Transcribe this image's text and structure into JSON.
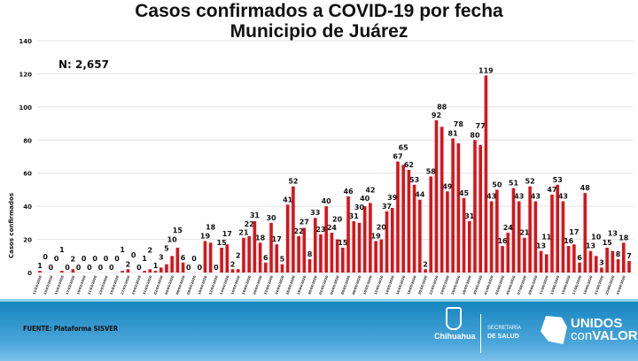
{
  "chart_data": {
    "type": "bar",
    "title": "Casos confirmados a COVID-19 por fecha",
    "subtitle": "Municipio de Juárez",
    "ylabel": "Casos confirmados",
    "xlabel": "",
    "ylim": [
      0,
      140
    ],
    "yticks": [
      0,
      20,
      40,
      60,
      80,
      100,
      120,
      140
    ],
    "grid": true,
    "bar_color": "#d7141a",
    "annotation": "N: 2,657",
    "categories": [
      "11/03/2020",
      "12/03/2020",
      "13/03/2020",
      "14/03/2020",
      "15/03/2020",
      "16/03/2020",
      "17/03/2020",
      "18/03/2020",
      "19/03/2020",
      "20/03/2020",
      "21/03/2020",
      "22/03/2020",
      "23/03/2020",
      "24/03/2020",
      "25/03/2020",
      "26/03/2020",
      "27/03/2020",
      "28/03/2020",
      "29/03/2020",
      "30/03/2020",
      "31/03/2020",
      "01/04/2020",
      "02/04/2020",
      "03/04/2020",
      "04/04/2020",
      "05/04/2020",
      "06/04/2020",
      "07/04/2020",
      "08/04/2020",
      "09/04/2020",
      "10/04/2020",
      "11/04/2020",
      "12/04/2020",
      "13/04/2020",
      "14/04/2020",
      "15/04/2020",
      "16/04/2020",
      "17/04/2020",
      "18/04/2020",
      "19/04/2020",
      "20/04/2020",
      "21/04/2020",
      "22/04/2020",
      "23/04/2020",
      "24/04/2020",
      "25/04/2020",
      "26/04/2020",
      "27/04/2020",
      "28/04/2020",
      "29/04/2020",
      "30/04/2020",
      "01/05/2020",
      "02/05/2020",
      "03/05/2020",
      "04/05/2020",
      "05/05/2020",
      "06/05/2020",
      "07/05/2020",
      "08/05/2020",
      "09/05/2020",
      "10/05/2020",
      "11/05/2020",
      "12/05/2020",
      "13/05/2020",
      "14/05/2020",
      "15/05/2020",
      "16/05/2020",
      "17/05/2020",
      "18/05/2020",
      "19/05/2020",
      "20/05/2020",
      "21/05/2020",
      "22/05/2020",
      "23/05/2020",
      "24/05/2020",
      "25/05/2020",
      "26/05/2020",
      "27/05/2020",
      "28/05/2020",
      "29/05/2020",
      "30/05/2020",
      "31/05/2020",
      "01/06/2020",
      "02/06/2020",
      "03/06/2020",
      "04/06/2020",
      "05/06/2020",
      "06/06/2020",
      "07/06/2020",
      "08/06/2020",
      "09/06/2020",
      "10/06/2020",
      "11/06/2020",
      "12/06/2020",
      "13/06/2020",
      "14/06/2020",
      "15/06/2020",
      "16/06/2020",
      "17/06/2020",
      "18/06/2020",
      "19/06/2020",
      "20/06/2020",
      "21/06/2020",
      "22/06/2020",
      "23/06/2020",
      "24/06/2020",
      "25/06/2020",
      "26/06/2020"
    ],
    "values": [
      1,
      0,
      0,
      0,
      1,
      0,
      2,
      0,
      0,
      0,
      0,
      0,
      0,
      0,
      0,
      1,
      2,
      0,
      0,
      1,
      2,
      1,
      3,
      5,
      10,
      15,
      6,
      0,
      0,
      0,
      19,
      18,
      0,
      15,
      17,
      2,
      2,
      21,
      22,
      31,
      18,
      6,
      30,
      17,
      5,
      41,
      52,
      22,
      27,
      8,
      33,
      23,
      40,
      24,
      20,
      15,
      46,
      31,
      30,
      40,
      42,
      19,
      20,
      37,
      39,
      67,
      65,
      62,
      53,
      44,
      2,
      58,
      92,
      88,
      49,
      81,
      78,
      45,
      31,
      80,
      77,
      119,
      43,
      50,
      16,
      24,
      51,
      43,
      21,
      52,
      43,
      13,
      11,
      47,
      53,
      43,
      16,
      17,
      6,
      48,
      13,
      10,
      3,
      15,
      13,
      8,
      18,
      7
    ]
  },
  "footer": {
    "source": "FUENTE: Plataforma SISVER",
    "logo_chihuahua": "Chihuahua",
    "logo_secretaria_line1": "SECRETARÍA",
    "logo_secretaria_line2": "DE SALUD",
    "logo_unidos_line1": "UNIDOS",
    "logo_unidos_con": "con",
    "logo_unidos_valor": "VALOR",
    "background_color": "#1685bf"
  }
}
